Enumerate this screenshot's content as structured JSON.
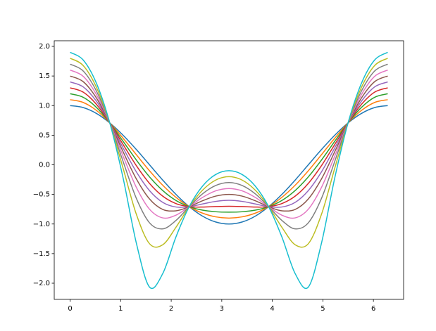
{
  "chart_data": {
    "type": "line",
    "x": [
      0,
      0.262,
      0.524,
      0.785,
      1.047,
      1.309,
      1.571,
      1.833,
      2.094,
      2.356,
      2.618,
      2.88,
      3.142,
      3.403,
      3.665,
      3.927,
      4.189,
      4.451,
      4.712,
      4.974,
      5.236,
      5.498,
      5.76,
      6.021,
      6.283
    ],
    "series": [
      {
        "color": "#1f77b4",
        "values": [
          1,
          0.966,
          0.866,
          0.707,
          0.5,
          0.259,
          0,
          -0.259,
          -0.5,
          -0.707,
          -0.866,
          -0.966,
          -1,
          -0.966,
          -0.866,
          -0.707,
          -0.5,
          -0.259,
          0,
          0.259,
          0.5,
          0.707,
          0.866,
          0.966,
          1
        ]
      },
      {
        "color": "#ff7f0e",
        "values": [
          1.1,
          1.052,
          0.916,
          0.707,
          0.45,
          0.172,
          -0.101,
          -0.346,
          -0.55,
          -0.707,
          -0.816,
          -0.879,
          -0.9,
          -0.879,
          -0.816,
          -0.707,
          -0.55,
          -0.346,
          -0.101,
          0.172,
          0.45,
          0.707,
          0.916,
          1.052,
          1.1
        ]
      },
      {
        "color": "#2ca02c",
        "values": [
          1.2,
          1.139,
          0.967,
          0.707,
          0.398,
          0.082,
          -0.204,
          -0.435,
          -0.602,
          -0.707,
          -0.766,
          -0.793,
          -0.8,
          -0.793,
          -0.766,
          -0.707,
          -0.602,
          -0.435,
          -0.204,
          0.082,
          0.398,
          0.707,
          0.967,
          1.139,
          1.2
        ]
      },
      {
        "color": "#d62728",
        "values": [
          1.3,
          1.226,
          1.018,
          0.707,
          0.345,
          -0.013,
          -0.314,
          -0.53,
          -0.655,
          -0.707,
          -0.714,
          -0.705,
          -0.7,
          -0.705,
          -0.714,
          -0.707,
          -0.655,
          -0.53,
          -0.314,
          -0.013,
          0.345,
          0.707,
          1.018,
          1.226,
          1.3
        ]
      },
      {
        "color": "#9467bd",
        "values": [
          1.4,
          1.314,
          1.07,
          0.707,
          0.287,
          -0.117,
          -0.436,
          -0.635,
          -0.713,
          -0.707,
          -0.662,
          -0.618,
          -0.6,
          -0.618,
          -0.662,
          -0.707,
          -0.713,
          -0.635,
          -0.436,
          -0.117,
          0.287,
          0.707,
          1.07,
          1.314,
          1.4
        ]
      },
      {
        "color": "#8c564b",
        "values": [
          1.5,
          1.402,
          1.124,
          0.707,
          0.223,
          -0.236,
          -0.577,
          -0.754,
          -0.777,
          -0.707,
          -0.608,
          -0.529,
          -0.5,
          -0.529,
          -0.608,
          -0.707,
          -0.777,
          -0.754,
          -0.577,
          -0.236,
          0.223,
          0.707,
          1.124,
          1.402,
          1.5
        ]
      },
      {
        "color": "#e377c2",
        "values": [
          1.6,
          1.492,
          1.181,
          0.707,
          0.149,
          -0.379,
          -0.75,
          -0.897,
          -0.851,
          -0.707,
          -0.552,
          -0.44,
          -0.4,
          -0.44,
          -0.552,
          -0.707,
          -0.851,
          -0.897,
          -0.75,
          -0.379,
          0.149,
          0.707,
          1.181,
          1.492,
          1.6
        ]
      },
      {
        "color": "#7f7f7f",
        "values": [
          1.7,
          1.582,
          1.24,
          0.707,
          0.06,
          -0.564,
          -0.98,
          -1.082,
          -0.94,
          -0.707,
          -0.492,
          -0.35,
          -0.3,
          -0.35,
          -0.492,
          -0.707,
          -0.94,
          -1.082,
          -0.98,
          -0.564,
          0.06,
          0.707,
          1.24,
          1.582,
          1.7
        ]
      },
      {
        "color": "#bcbd22",
        "values": [
          1.8,
          1.674,
          1.302,
          0.707,
          -0.055,
          -0.833,
          -1.333,
          -1.35,
          -1.055,
          -0.707,
          -0.43,
          -0.258,
          -0.2,
          -0.258,
          -0.43,
          -0.707,
          -1.055,
          -1.35,
          -1.333,
          -0.833,
          -0.055,
          0.707,
          1.302,
          1.674,
          1.8
        ]
      },
      {
        "color": "#17becf",
        "values": [
          1.9,
          1.767,
          1.37,
          0.707,
          -0.218,
          -1.318,
          -2.065,
          -1.836,
          -1.218,
          -0.707,
          -0.362,
          -0.164,
          -0.1,
          -0.164,
          -0.362,
          -0.707,
          -1.218,
          -1.836,
          -2.065,
          -1.318,
          -0.218,
          0.707,
          1.37,
          1.767,
          1.9
        ]
      }
    ],
    "xlim": [
      -0.314,
      6.597
    ],
    "ylim": [
      -2.273,
      2.095
    ],
    "xticks": [
      0,
      1,
      2,
      3,
      4,
      5,
      6
    ],
    "yticks": [
      {
        "value": -2,
        "label": "−2.0"
      },
      {
        "value": -1.5,
        "label": "−1.5"
      },
      {
        "value": -1,
        "label": "−1.0"
      },
      {
        "value": -0.5,
        "label": "−0.5"
      },
      {
        "value": 0,
        "label": "0.0"
      },
      {
        "value": 0.5,
        "label": "0.5"
      },
      {
        "value": 1,
        "label": "1.0"
      },
      {
        "value": 1.5,
        "label": "1.5"
      },
      {
        "value": 2,
        "label": "2.0"
      }
    ],
    "grid": false
  }
}
